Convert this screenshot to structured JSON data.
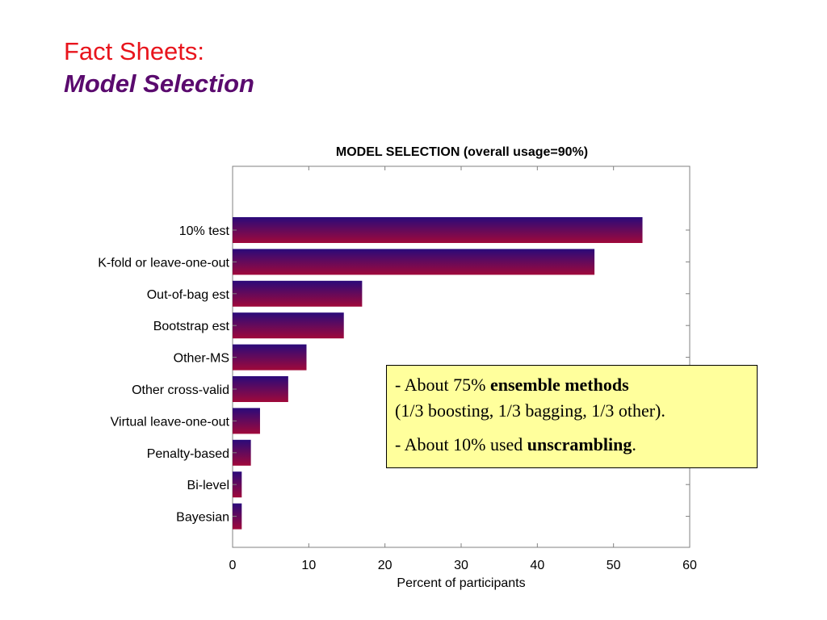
{
  "slide": {
    "title_line1": "Fact Sheets:",
    "title_line2": "Model Selection",
    "title_color": "#e8141c",
    "subtitle_color": "#5a0a6e"
  },
  "callout": {
    "line1_prefix": "- About 75% ",
    "line1_bold": "ensemble methods",
    "line2": "(1/3 boosting, 1/3 bagging, 1/3 other).",
    "line3_prefix": "- About 10% used ",
    "line3_bold": "unscrambling",
    "line3_suffix": ".",
    "background": "#ffff9c"
  },
  "chart_data": {
    "type": "bar",
    "orientation": "horizontal",
    "title": "MODEL SELECTION (overall usage=90%)",
    "xlabel": "Percent of participants",
    "ylabel": "",
    "xlim": [
      0,
      60
    ],
    "xticks": [
      0,
      10,
      20,
      30,
      40,
      50,
      60
    ],
    "categories": [
      "10% test",
      "K-fold or leave-one-out",
      "Out-of-bag est",
      "Bootstrap est",
      "Other-MS",
      "Other cross-valid",
      "Virtual leave-one-out",
      "Penalty-based",
      "Bi-level",
      "Bayesian"
    ],
    "values": [
      53.8,
      47.5,
      17.0,
      14.6,
      9.7,
      7.3,
      3.6,
      2.4,
      1.2,
      1.2
    ],
    "bar_gradient": [
      "#2a0a7a",
      "#a0093a"
    ],
    "grid": false
  }
}
